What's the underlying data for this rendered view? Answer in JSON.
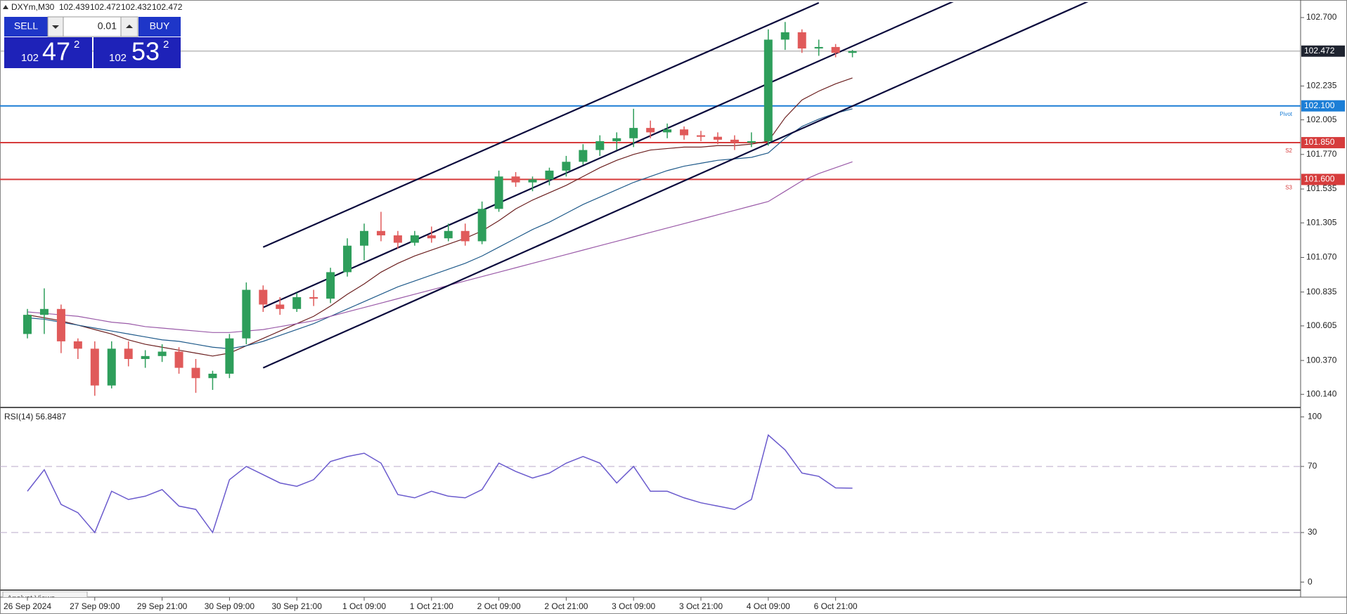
{
  "chart_data": {
    "type": "candlestick",
    "title": "DXYm,M30",
    "quote": [
      102.439,
      102.472,
      102.432,
      102.472
    ],
    "categories": [
      "26 Sep 2024",
      null,
      null,
      null,
      "27 Sep 09:00",
      null,
      null,
      null,
      "29 Sep 21:00",
      null,
      null,
      null,
      "30 Sep 09:00",
      null,
      null,
      null,
      "30 Sep 21:00",
      null,
      null,
      null,
      "1 Oct 09:00",
      null,
      null,
      null,
      "1 Oct 21:00",
      null,
      null,
      null,
      "2 Oct 09:00",
      null,
      null,
      null,
      "2 Oct 21:00",
      null,
      null,
      null,
      "3 Oct 09:00",
      null,
      null,
      null,
      "3 Oct 21:00",
      null,
      null,
      null,
      "4 Oct 09:00",
      null,
      null,
      null,
      "6 Oct 21:00",
      null
    ],
    "open": [
      100.55,
      100.68,
      100.72,
      100.5,
      100.45,
      100.2,
      100.45,
      100.38,
      100.4,
      100.43,
      100.32,
      100.25,
      100.28,
      100.52,
      100.85,
      100.75,
      100.72,
      100.8,
      100.79,
      100.97,
      101.15,
      101.25,
      101.22,
      101.17,
      101.22,
      101.2,
      101.25,
      101.18,
      101.4,
      101.62,
      101.58,
      101.6,
      101.66,
      101.72,
      101.8,
      101.86,
      101.88,
      101.95,
      101.92,
      101.94,
      101.9,
      101.89,
      101.87,
      101.85,
      101.86,
      102.55,
      102.6,
      102.49,
      102.5,
      102.46
    ],
    "high": [
      100.72,
      100.86,
      100.75,
      100.52,
      100.5,
      100.5,
      100.5,
      100.44,
      100.48,
      100.46,
      100.38,
      100.3,
      100.55,
      100.9,
      100.88,
      100.8,
      100.83,
      100.85,
      101.0,
      101.2,
      101.3,
      101.38,
      101.25,
      101.25,
      101.28,
      101.3,
      101.3,
      101.45,
      101.66,
      101.65,
      101.62,
      101.68,
      101.76,
      101.84,
      101.9,
      101.92,
      102.08,
      102.0,
      101.98,
      101.96,
      101.93,
      101.92,
      101.9,
      101.92,
      102.62,
      102.67,
      102.62,
      102.55,
      102.52,
      102.48
    ],
    "low": [
      100.52,
      100.55,
      100.42,
      100.38,
      100.13,
      100.18,
      100.33,
      100.32,
      100.36,
      100.28,
      100.15,
      100.17,
      100.25,
      100.48,
      100.7,
      100.68,
      100.7,
      100.74,
      100.76,
      100.94,
      101.05,
      101.18,
      101.13,
      101.15,
      101.17,
      101.18,
      101.15,
      101.16,
      101.38,
      101.55,
      101.52,
      101.56,
      101.62,
      101.7,
      101.76,
      101.8,
      101.82,
      101.88,
      101.88,
      101.87,
      101.86,
      101.84,
      101.8,
      101.82,
      101.83,
      102.48,
      102.46,
      102.44,
      102.43,
      102.43
    ],
    "close": [
      100.68,
      100.72,
      100.5,
      100.45,
      100.2,
      100.45,
      100.38,
      100.4,
      100.43,
      100.32,
      100.25,
      100.28,
      100.52,
      100.85,
      100.75,
      100.72,
      100.8,
      100.79,
      100.97,
      101.15,
      101.25,
      101.22,
      101.17,
      101.22,
      101.2,
      101.25,
      101.18,
      101.4,
      101.62,
      101.58,
      101.6,
      101.66,
      101.72,
      101.8,
      101.86,
      101.88,
      101.95,
      101.92,
      101.94,
      101.9,
      101.89,
      101.87,
      101.85,
      101.86,
      102.55,
      102.6,
      102.49,
      102.5,
      102.46,
      102.472
    ],
    "up_color": "#2e9e5b",
    "down_color": "#e05a5a",
    "moving_averages": [
      {
        "color": "#6b1f1f",
        "values": [
          100.68,
          100.66,
          100.64,
          100.61,
          100.58,
          100.55,
          100.51,
          100.48,
          100.46,
          100.44,
          100.42,
          100.4,
          100.42,
          100.47,
          100.52,
          100.57,
          100.62,
          100.67,
          100.74,
          100.82,
          100.89,
          100.97,
          101.03,
          101.08,
          101.12,
          101.16,
          101.2,
          101.25,
          101.32,
          101.4,
          101.46,
          101.51,
          101.56,
          101.62,
          101.68,
          101.73,
          101.77,
          101.8,
          101.81,
          101.82,
          101.82,
          101.83,
          101.83,
          101.84,
          101.86,
          102.02,
          102.14,
          102.2,
          102.25,
          102.29
        ]
      },
      {
        "color": "#1f5a8a",
        "values": [
          100.66,
          100.65,
          100.63,
          100.61,
          100.59,
          100.57,
          100.55,
          100.53,
          100.51,
          100.5,
          100.48,
          100.46,
          100.45,
          100.47,
          100.5,
          100.54,
          100.58,
          100.62,
          100.67,
          100.72,
          100.77,
          100.82,
          100.87,
          100.91,
          100.95,
          100.99,
          101.03,
          101.08,
          101.14,
          101.2,
          101.26,
          101.31,
          101.37,
          101.43,
          101.48,
          101.53,
          101.58,
          101.62,
          101.66,
          101.69,
          101.71,
          101.73,
          101.74,
          101.75,
          101.78,
          101.88,
          101.96,
          102.01,
          102.05,
          102.08
        ]
      },
      {
        "color": "#9a5aa8",
        "values": [
          100.7,
          100.69,
          100.68,
          100.67,
          100.65,
          100.63,
          100.62,
          100.6,
          100.59,
          100.58,
          100.57,
          100.56,
          100.56,
          100.57,
          100.58,
          100.6,
          100.62,
          100.64,
          100.67,
          100.7,
          100.73,
          100.76,
          100.79,
          100.82,
          100.85,
          100.88,
          100.91,
          100.94,
          100.97,
          101.0,
          101.03,
          101.06,
          101.09,
          101.12,
          101.15,
          101.18,
          101.21,
          101.24,
          101.27,
          101.3,
          101.33,
          101.36,
          101.39,
          101.42,
          101.45,
          101.52,
          101.59,
          101.64,
          101.68,
          101.72
        ]
      }
    ],
    "trendlines": [
      {
        "color": "#0a0a3c",
        "x": [
          14,
          47
        ],
        "y": [
          101.14,
          102.8
        ]
      },
      {
        "color": "#0a0a3c",
        "x": [
          14,
          55
        ],
        "y": [
          100.73,
          102.81
        ]
      },
      {
        "color": "#0a0a3c",
        "x": [
          14,
          63
        ],
        "y": [
          100.32,
          102.81
        ]
      }
    ],
    "levels": [
      {
        "value": 102.1,
        "label": "102.100",
        "name": "Pivot",
        "color": "#1c7ed6"
      },
      {
        "value": 101.85,
        "label": "101.850",
        "name": "S2",
        "color": "#d63c3c"
      },
      {
        "value": 101.6,
        "label": "101.600",
        "name": "S3",
        "color": "#d63c3c"
      }
    ],
    "last_price": 102.472,
    "ylim": [
      100.065,
      102.805
    ],
    "yticks": [
      {
        "value": 100.14,
        "label": "100.140"
      },
      {
        "value": 100.37,
        "label": "100.370"
      },
      {
        "value": 100.605,
        "label": "100.605"
      },
      {
        "value": 100.835,
        "label": "100.835"
      },
      {
        "value": 101.07,
        "label": "101.070"
      },
      {
        "value": 101.305,
        "label": "101.305"
      },
      {
        "value": 101.535,
        "label": "101.535"
      },
      {
        "value": 101.77,
        "label": "101.770"
      },
      {
        "value": 102.005,
        "label": "102.005"
      },
      {
        "value": 102.235,
        "label": "102.235"
      },
      {
        "value": 102.7,
        "label": "102.700"
      }
    ],
    "rsi": {
      "label": "RSI(14) 56.8487",
      "color": "#6a5acd",
      "values": [
        55,
        68,
        47,
        42,
        30,
        55,
        50,
        52,
        56,
        46,
        44,
        30,
        62,
        70,
        65,
        60,
        58,
        62,
        73,
        76,
        78,
        72,
        53,
        51,
        55,
        52,
        51,
        56,
        72,
        67,
        63,
        66,
        72,
        76,
        72,
        60,
        70,
        55,
        55,
        51,
        48,
        46,
        44,
        50,
        89,
        80,
        66,
        64,
        57,
        56.85
      ],
      "ylim": [
        -4,
        104
      ],
      "yticks": [
        0,
        30,
        70,
        100
      ],
      "levels": [
        30,
        70
      ]
    },
    "footer": "Analyst Views"
  },
  "trade_panel": {
    "sell": "SELL",
    "buy": "BUY",
    "volume": "0.01",
    "bid_prefix": "102",
    "bid_big": "47",
    "bid_small": "2",
    "ask_prefix": "102",
    "ask_big": "53",
    "ask_small": "2"
  }
}
